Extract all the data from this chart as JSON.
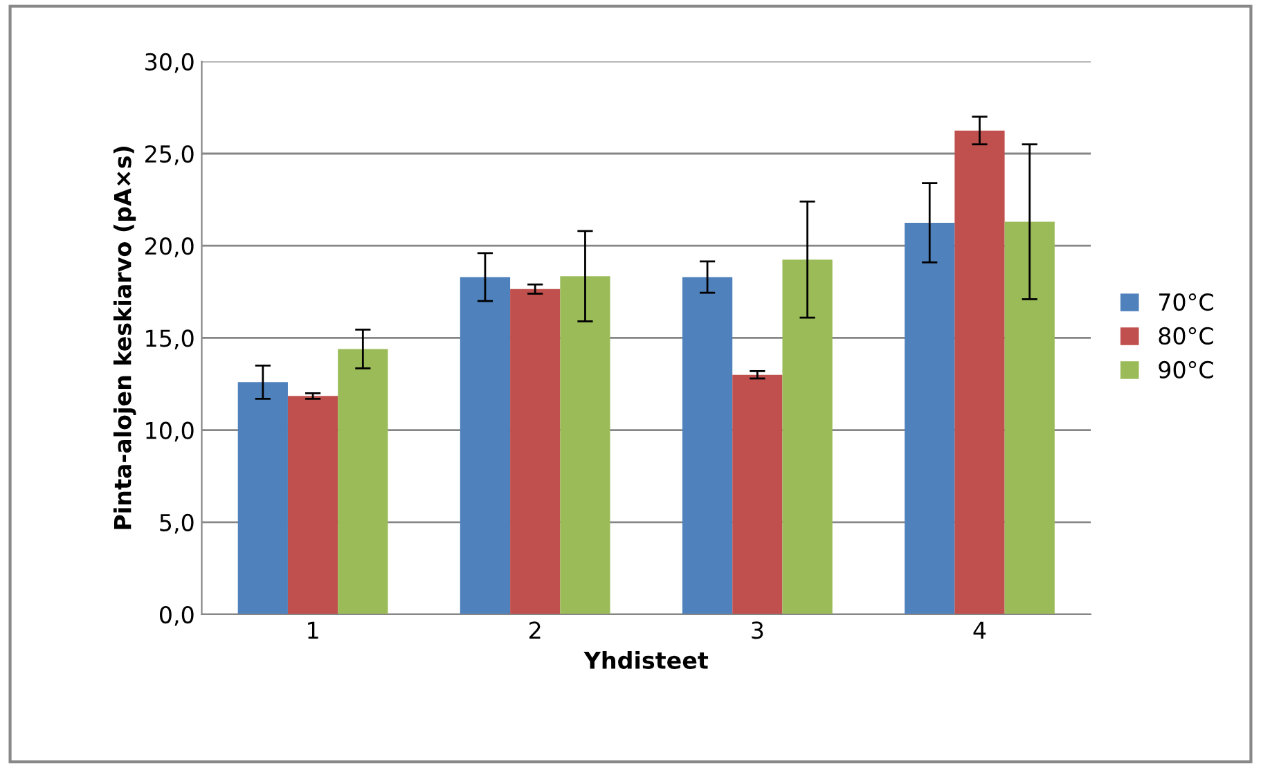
{
  "chart_data": {
    "type": "bar",
    "xlabel": "Yhdisteet",
    "ylabel": "Pinta-alojen keskiarvo (pA×s)",
    "categories": [
      "1",
      "2",
      "3",
      "4"
    ],
    "series": [
      {
        "name": "70°C",
        "color": "#4f81bd",
        "values": [
          12.6,
          18.3,
          18.3,
          21.25
        ],
        "errors": [
          0.9,
          1.3,
          0.85,
          2.15
        ]
      },
      {
        "name": "80°C",
        "color": "#c0504d",
        "values": [
          11.85,
          17.65,
          13.0,
          26.25
        ],
        "errors": [
          0.15,
          0.25,
          0.2,
          0.75
        ]
      },
      {
        "name": "90°C",
        "color": "#9bbb59",
        "values": [
          14.4,
          18.35,
          19.25,
          21.3
        ],
        "errors": [
          1.05,
          2.45,
          3.15,
          4.2
        ]
      }
    ],
    "ylim": [
      0,
      30
    ],
    "yticks": [
      {
        "value": 0,
        "label": "0,0"
      },
      {
        "value": 5,
        "label": "5,0"
      },
      {
        "value": 10,
        "label": "10,0"
      },
      {
        "value": 15,
        "label": "15,0"
      },
      {
        "value": 20,
        "label": "20,0"
      },
      {
        "value": 25,
        "label": "25,0"
      },
      {
        "value": 30,
        "label": "30,0"
      }
    ],
    "grid": "y",
    "legend": "right"
  }
}
